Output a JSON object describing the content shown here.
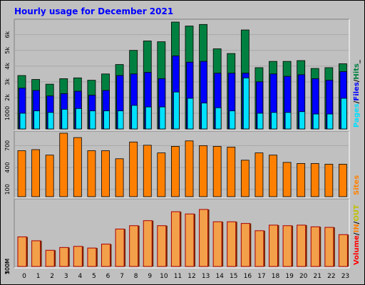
{
  "colors": {
    "frame_bg": "#c0c0c0",
    "title": "#0000ff",
    "hits": "#008040",
    "files": "#0000ff",
    "pages": "#00e0ff",
    "sites": "#ff8000",
    "volume": "#ff0000",
    "kbin": "#ff8000",
    "kbout": "#c0c000",
    "volume_bar": "#f2a04a",
    "volume_border": "#aa0000"
  },
  "chart_data": [
    {
      "type": "bar",
      "title": "Hourly usage for December 2021",
      "categories": [
        "0",
        "1",
        "2",
        "3",
        "4",
        "5",
        "6",
        "7",
        "8",
        "9",
        "10",
        "11",
        "12",
        "13",
        "14",
        "15",
        "16",
        "17",
        "18",
        "19",
        "20",
        "21",
        "22",
        "23"
      ],
      "yticks": [
        "1000",
        "2k",
        "3k",
        "4k",
        "5k",
        "6k"
      ],
      "ylim": [
        0,
        6800
      ],
      "legend": [
        {
          "label": "Pages",
          "color": "#00e0ff"
        },
        {
          "label": "/",
          "color": "#000000"
        },
        {
          "label": "Files",
          "color": "#0000ff"
        },
        {
          "label": "/",
          "color": "#000000"
        },
        {
          "label": "Hits",
          "color": "#008040"
        },
        {
          "label": "_",
          "color": "#000000"
        }
      ],
      "series": [
        {
          "name": "Hits",
          "values": [
            3400,
            3150,
            2850,
            3200,
            3250,
            3100,
            3500,
            4100,
            5000,
            5600,
            5550,
            6800,
            6550,
            6650,
            5100,
            4800,
            6300,
            3900,
            4300,
            4300,
            4350,
            3850,
            3900,
            4150
          ]
        },
        {
          "name": "Files",
          "values": [
            2600,
            2450,
            2100,
            2250,
            2400,
            2150,
            2450,
            3400,
            3500,
            3600,
            3200,
            4650,
            4250,
            4300,
            3550,
            3550,
            3550,
            3000,
            3500,
            3350,
            3450,
            3200,
            3100,
            3650
          ]
        },
        {
          "name": "Pages",
          "values": [
            1000,
            1150,
            1050,
            1250,
            1300,
            1150,
            1150,
            1150,
            1500,
            1400,
            1400,
            2350,
            1950,
            1650,
            1350,
            1150,
            3250,
            1000,
            1050,
            1050,
            1100,
            950,
            950,
            1950
          ]
        }
      ]
    },
    {
      "type": "bar",
      "categories": [
        "0",
        "1",
        "2",
        "3",
        "4",
        "5",
        "6",
        "7",
        "8",
        "9",
        "10",
        "11",
        "12",
        "13",
        "14",
        "15",
        "16",
        "17",
        "18",
        "19",
        "20",
        "21",
        "22",
        "23"
      ],
      "yticks": [
        "100",
        "400",
        "700"
      ],
      "ylim": [
        0,
        860
      ],
      "legend": [
        {
          "label": "Sites",
          "color": "#ff8000"
        }
      ],
      "series": [
        {
          "name": "Sites",
          "values": [
            630,
            645,
            570,
            870,
            810,
            630,
            630,
            520,
            750,
            705,
            600,
            690,
            765,
            700,
            690,
            680,
            500,
            600,
            570,
            470,
            455,
            455,
            445,
            445
          ]
        }
      ]
    },
    {
      "type": "bar",
      "categories": [
        "0",
        "1",
        "2",
        "3",
        "4",
        "5",
        "6",
        "7",
        "8",
        "9",
        "10",
        "11",
        "12",
        "13",
        "14",
        "15",
        "16",
        "17",
        "18",
        "19",
        "20",
        "21",
        "22",
        "23"
      ],
      "xticks": [
        "0",
        "1",
        "2",
        "3",
        "4",
        "5",
        "6",
        "7",
        "8",
        "9",
        "10",
        "11",
        "12",
        "13",
        "14",
        "15",
        "16",
        "17",
        "18",
        "19",
        "20",
        "21",
        "22",
        "23"
      ],
      "yticks": [
        "100M",
        "300M",
        "500M"
      ],
      "ylim": [
        0,
        580
      ],
      "legend": [
        {
          "label": "Volume",
          "color": "#ff0000"
        },
        {
          "label": "/",
          "color": "#000000"
        },
        {
          "label": "IN",
          "color": "#ff8000"
        },
        {
          "label": "/",
          "color": "#000000"
        },
        {
          "label": "OUT",
          "color": "#c0c000"
        }
      ],
      "series": [
        {
          "name": "Volume",
          "values": [
            265,
            230,
            145,
            170,
            180,
            165,
            200,
            335,
            365,
            410,
            365,
            490,
            470,
            510,
            400,
            400,
            385,
            320,
            370,
            365,
            370,
            355,
            350,
            285
          ]
        }
      ]
    }
  ]
}
